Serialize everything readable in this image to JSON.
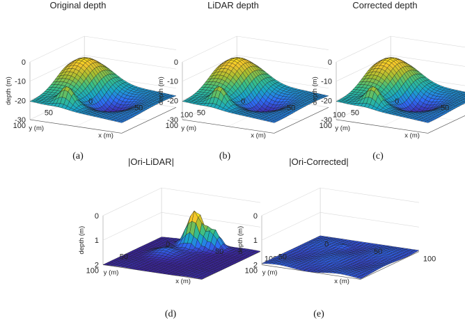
{
  "figure": {
    "panels": [
      {
        "id": "a",
        "title": "Original depth",
        "caption": "(a)",
        "kind": "depth"
      },
      {
        "id": "b",
        "title": "LiDAR depth",
        "caption": "(b)",
        "kind": "depth"
      },
      {
        "id": "c",
        "title": "Corrected depth",
        "caption": "(c)",
        "kind": "depth"
      },
      {
        "id": "d",
        "title": "|Ori-LiDAR|",
        "caption": "(d)",
        "kind": "error_large"
      },
      {
        "id": "e",
        "title": "|Ori-Corrected|",
        "caption": "(e)",
        "kind": "error_small"
      }
    ],
    "colormap": [
      "#3e26a8",
      "#2e6cf6",
      "#19a8c7",
      "#38bf87",
      "#a5be31",
      "#f4c52c",
      "#f9fb14"
    ],
    "edge_color": "#1a1a1a"
  },
  "chart_data": [
    {
      "type": "surface",
      "title": "Original depth",
      "xlabel": "x (m)",
      "ylabel": "y (m)",
      "zlabel": "depth (m)",
      "xlim": [
        0,
        100
      ],
      "ylim": [
        0,
        100
      ],
      "zlim": [
        -30,
        0
      ],
      "xticks": [
        "0",
        "50",
        "100"
      ],
      "yticks": [
        "50",
        "100"
      ],
      "zticks": [
        "0",
        "-10",
        "-20",
        "-30"
      ],
      "description_values": {
        "z_min": -30,
        "z_max": -5,
        "peak_near": [
          50,
          15
        ],
        "ridge_near": [
          15,
          80
        ]
      }
    },
    {
      "type": "surface",
      "title": "LiDAR depth",
      "xlabel": "x (m)",
      "ylabel": "y (m)",
      "zlabel": "depth (m)",
      "xlim": [
        0,
        100
      ],
      "ylim": [
        0,
        100
      ],
      "zlim": [
        -30,
        0
      ],
      "xticks": [
        "0",
        "50",
        "100"
      ],
      "yticks": [
        "50",
        "100"
      ],
      "zticks": [
        "0",
        "-10",
        "-20",
        "-30"
      ]
    },
    {
      "type": "surface",
      "title": "Corrected depth",
      "xlabel": "x (m)",
      "ylabel": "y (m)",
      "zlabel": "depth (m)",
      "xlim": [
        0,
        100
      ],
      "ylim": [
        0,
        100
      ],
      "zlim": [
        -30,
        0
      ],
      "xticks": [
        "0",
        "50",
        "100"
      ],
      "yticks": [
        "50",
        "100"
      ],
      "zticks": [
        "0",
        "-10",
        "-20",
        "-30"
      ]
    },
    {
      "type": "surface",
      "title": "|Ori-LiDAR|",
      "xlabel": "x (m)",
      "ylabel": "y (m)",
      "zlabel": "depth (m)",
      "xlim": [
        0,
        100
      ],
      "ylim": [
        0,
        100
      ],
      "zlim": [
        0,
        2
      ],
      "xticks": [
        "0",
        "50",
        "100"
      ],
      "yticks": [
        "50",
        "100"
      ],
      "zticks": [
        "0",
        "1",
        "2"
      ],
      "description_values": {
        "z_max": 1.45,
        "peak_near": [
          40,
          15
        ]
      }
    },
    {
      "type": "surface",
      "title": "|Ori-Corrected|",
      "xlabel": "x (m)",
      "ylabel": "y (m)",
      "zlabel": "depth (m)",
      "xlim": [
        0,
        100
      ],
      "ylim": [
        0,
        100
      ],
      "zlim": [
        0,
        2
      ],
      "xticks": [
        "0",
        "50",
        "100"
      ],
      "yticks": [
        "50",
        "100"
      ],
      "zticks": [
        "0",
        "1",
        "2"
      ],
      "description_values": {
        "z_max": 0.15
      }
    }
  ]
}
